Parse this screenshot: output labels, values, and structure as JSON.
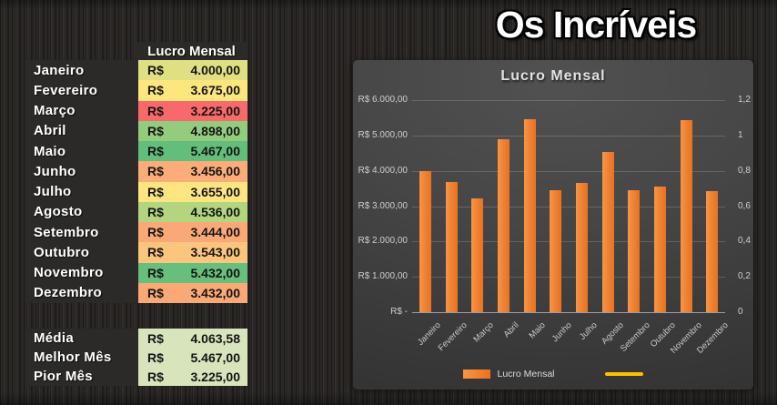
{
  "page": {
    "title": "Os Incríveis"
  },
  "table": {
    "header": "Lucro Mensal",
    "currency": "R$",
    "rows": [
      {
        "month": "Janeiro",
        "value": "4.000,00",
        "color": "#DEE082"
      },
      {
        "month": "Fevereiro",
        "value": "3.675,00",
        "color": "#FCE77F"
      },
      {
        "month": "Março",
        "value": "3.225,00",
        "color": "#F8696B"
      },
      {
        "month": "Abril",
        "value": "4.898,00",
        "color": "#94CC7E"
      },
      {
        "month": "Maio",
        "value": "5.467,00",
        "color": "#63BE7B"
      },
      {
        "month": "Junho",
        "value": "3.456,00",
        "color": "#FBAC78"
      },
      {
        "month": "Julho",
        "value": "3.655,00",
        "color": "#FEE582"
      },
      {
        "month": "Agosto",
        "value": "4.536,00",
        "color": "#B3D57F"
      },
      {
        "month": "Setembro",
        "value": "3.444,00",
        "color": "#FAA976"
      },
      {
        "month": "Outubro",
        "value": "3.543,00",
        "color": "#FCC57D"
      },
      {
        "month": "Novembro",
        "value": "5.432,00",
        "color": "#66BF7B"
      },
      {
        "month": "Dezembro",
        "value": "3.432,00",
        "color": "#FAA876"
      }
    ],
    "summary": [
      {
        "label": "Média",
        "value": "4.063,58"
      },
      {
        "label": "Melhor Mês",
        "value": "5.467,00"
      },
      {
        "label": "Pior Mês",
        "value": "3.225,00"
      }
    ],
    "summary_color": "#D7E4BC",
    "label_bg_color": "#2B2A28"
  },
  "chart_data": {
    "type": "bar",
    "title": "Lucro Mensal",
    "categories": [
      "Janeiro",
      "Fevereiro",
      "Março",
      "Abril",
      "Maio",
      "Junho",
      "Julho",
      "Agosto",
      "Setembro",
      "Outubro",
      "Novembro",
      "Dezembro"
    ],
    "series": [
      {
        "name": "Lucro Mensal",
        "type": "bar",
        "color": "#ED7D31",
        "values": [
          4000,
          3675,
          3225,
          4898,
          5467,
          3456,
          3655,
          4536,
          3444,
          3543,
          5432,
          3432
        ]
      },
      {
        "name": "",
        "type": "line",
        "color": "#FFC000",
        "values": []
      }
    ],
    "left_axis": {
      "ticks": [
        "R$ 6.000,00",
        "R$ 5.000,00",
        "R$ 4.000,00",
        "R$ 3.000,00",
        "R$ 2.000,00",
        "R$ 1.000,00",
        "R$ -"
      ],
      "min": 0,
      "max": 6000
    },
    "right_axis": {
      "ticks": [
        "1,2",
        "1",
        "0,8",
        "0,6",
        "0,4",
        "0,2",
        "0"
      ],
      "min": 0,
      "max": 1.2
    },
    "grid": true,
    "legend_position": "bottom",
    "legend": [
      {
        "label": "Lucro Mensal",
        "swatch": "rect",
        "color": "#ED7D31"
      },
      {
        "label": "",
        "swatch": "line",
        "color": "#FFC000"
      }
    ]
  }
}
